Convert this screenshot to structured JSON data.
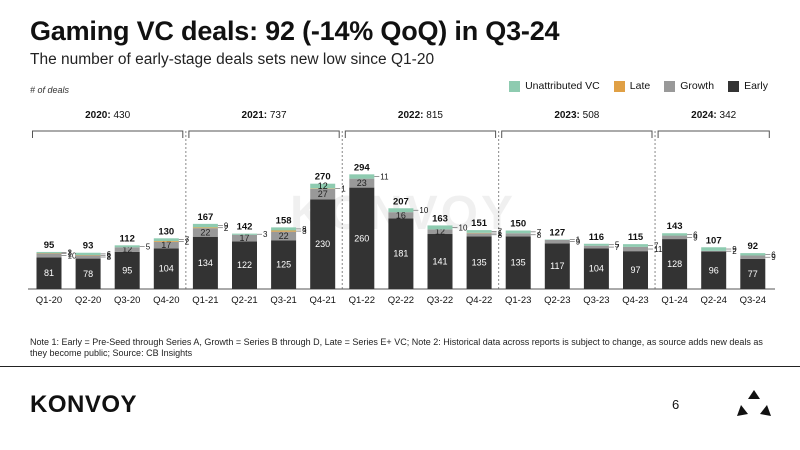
{
  "title": "Gaming VC deals: 92 (-14% QoQ) in Q3-24",
  "subtitle": "The number of early-stage deals sets new low since Q1-20",
  "note": "Note 1: Early = Pre-Seed through Series A, Growth = Series B through D, Late = Series E+ VC; Note 2: Historical data across reports is subject to change, as source adds new deals as they become public; Source: CB Insights",
  "brand": "KONVOY",
  "watermark": "KONVOY",
  "page_number": "6",
  "colors": {
    "early": "#333333",
    "growth": "#999999",
    "late": "#e0a045",
    "unattributed": "#8ecbb0"
  },
  "chart_data": {
    "type": "bar",
    "stacked": true,
    "ylabel": "# of deals",
    "legend": [
      "Unattributed VC",
      "Late",
      "Growth",
      "Early"
    ],
    "categories": [
      "Q1-20",
      "Q2-20",
      "Q3-20",
      "Q4-20",
      "Q1-21",
      "Q2-21",
      "Q3-21",
      "Q4-21",
      "Q1-22",
      "Q2-22",
      "Q3-22",
      "Q4-22",
      "Q1-23",
      "Q2-23",
      "Q3-23",
      "Q4-23",
      "Q1-24",
      "Q2-24",
      "Q3-24"
    ],
    "series": [
      {
        "name": "Early",
        "values": [
          81,
          78,
          95,
          104,
          134,
          122,
          125,
          230,
          260,
          181,
          141,
          135,
          135,
          117,
          104,
          97,
          128,
          96,
          77
        ]
      },
      {
        "name": "Growth",
        "values": [
          10,
          8,
          12,
          17,
          22,
          17,
          22,
          27,
          23,
          16,
          12,
          8,
          8,
          9,
          7,
          11,
          9,
          2,
          9
        ]
      },
      {
        "name": "Late",
        "values": [
          1,
          1,
          0,
          2,
          2,
          0,
          3,
          1,
          0,
          0,
          0,
          1,
          0,
          0,
          0,
          0,
          0,
          0,
          0
        ]
      },
      {
        "name": "Unattributed VC",
        "values": [
          3,
          6,
          5,
          7,
          9,
          3,
          8,
          12,
          11,
          10,
          10,
          7,
          7,
          1,
          5,
          7,
          6,
          9,
          6
        ]
      }
    ],
    "totals": [
      95,
      93,
      112,
      130,
      167,
      142,
      158,
      270,
      294,
      207,
      163,
      151,
      150,
      127,
      116,
      115,
      143,
      107,
      92
    ],
    "years": [
      {
        "label": "2020",
        "value": "430"
      },
      {
        "label": "2021",
        "value": "737"
      },
      {
        "label": "2022",
        "value": "815"
      },
      {
        "label": "2023",
        "value": "508"
      },
      {
        "label": "2024",
        "value": "342"
      }
    ]
  }
}
